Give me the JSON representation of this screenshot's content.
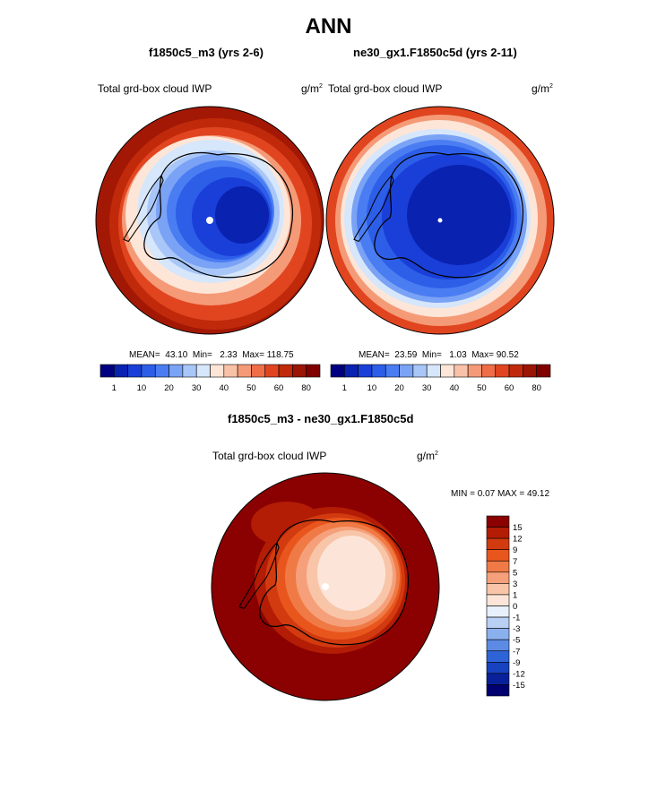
{
  "title": "ANN",
  "panels": [
    {
      "case_title": "f1850c5_m3 (yrs 2-6)",
      "var_label": "Total grd-box cloud IWP",
      "unit_base": "g/m",
      "unit_exp": "2",
      "mean_label": "MEAN=",
      "mean": "43.10",
      "min_label": "Min=",
      "min": "2.33",
      "max_label": "Max=",
      "max": "118.75"
    },
    {
      "case_title": "ne30_gx1.F1850c5d (yrs 2-11)",
      "var_label": "Total grd-box cloud IWP",
      "unit_base": "g/m",
      "unit_exp": "2",
      "mean_label": "MEAN=",
      "mean": "23.59",
      "min_label": "Min=",
      "min": "1.03",
      "max_label": "Max=",
      "max": "90.52"
    }
  ],
  "diff": {
    "title": "f1850c5_m3 - ne30_gx1.F1850c5d",
    "var_label": "Total grd-box cloud IWP",
    "unit_base": "g/m",
    "unit_exp": "2",
    "minmax_label": "MIN =   0.07 MAX =  49.12"
  },
  "chart_data": [
    {
      "type": "heatmap",
      "projection": "south-polar-stereographic",
      "colorbar": {
        "orientation": "horizontal",
        "tick_labels": [
          "1",
          "10",
          "20",
          "30",
          "40",
          "50",
          "60",
          "80"
        ],
        "colors": [
          "#000080",
          "#0a22b0",
          "#1a3fd8",
          "#2d5ee8",
          "#4a7df2",
          "#7aa2f5",
          "#a8c6f8",
          "#d6e6fb",
          "#fde6d8",
          "#f9c2a8",
          "#f59a77",
          "#ef6d47",
          "#e04520",
          "#c02a0a",
          "#9a1505",
          "#800000"
        ]
      },
      "mean": 43.1,
      "min": 2.33,
      "max": 118.75
    },
    {
      "type": "heatmap",
      "projection": "south-polar-stereographic",
      "colorbar": {
        "orientation": "horizontal",
        "tick_labels": [
          "1",
          "10",
          "20",
          "30",
          "40",
          "50",
          "60",
          "80"
        ],
        "colors": [
          "#000080",
          "#0a22b0",
          "#1a3fd8",
          "#2d5ee8",
          "#4a7df2",
          "#7aa2f5",
          "#a8c6f8",
          "#d6e6fb",
          "#fde6d8",
          "#f9c2a8",
          "#f59a77",
          "#ef6d47",
          "#e04520",
          "#c02a0a",
          "#9a1505",
          "#800000"
        ]
      },
      "mean": 23.59,
      "min": 1.03,
      "max": 90.52
    },
    {
      "type": "heatmap",
      "projection": "south-polar-stereographic",
      "colorbar": {
        "orientation": "vertical",
        "tick_labels": [
          "15",
          "12",
          "9",
          "7",
          "5",
          "3",
          "1",
          "0",
          "-1",
          "-3",
          "-5",
          "-7",
          "-9",
          "-12",
          "-15"
        ],
        "colors": [
          "#8b0000",
          "#b31c05",
          "#d23a10",
          "#e8561d",
          "#f07a45",
          "#f5a07a",
          "#f9c5a8",
          "#fce5d8",
          "#e8f0fb",
          "#b9d0f5",
          "#8bb0ee",
          "#5c8be5",
          "#2f63d8",
          "#1742c0",
          "#08219a",
          "#000070"
        ]
      },
      "min": 0.07,
      "max": 49.12
    }
  ]
}
